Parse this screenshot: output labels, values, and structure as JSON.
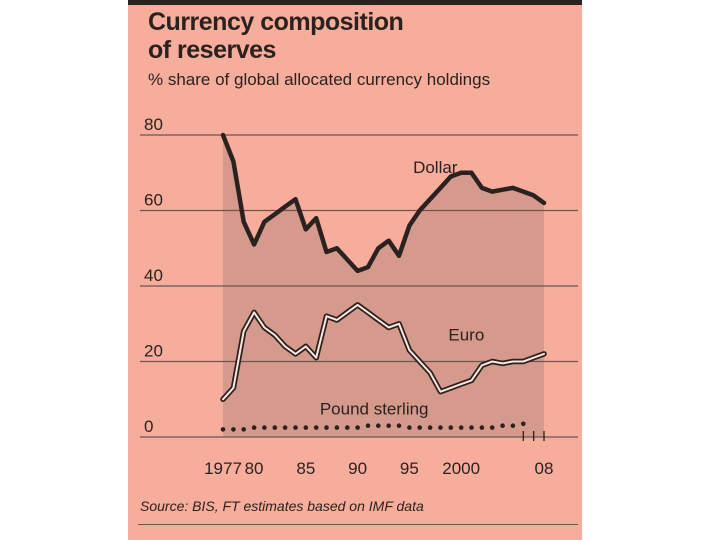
{
  "title_line1": "Currency composition",
  "title_line2": "of reserves",
  "subtitle": "% share of global allocated currency holdings",
  "source": "Source: BIS, FT estimates based on IMF data",
  "colors": {
    "paper": "#f6ad9b",
    "ink": "#2b2220",
    "shade": "#d69a8d",
    "grid": "#6b5652"
  },
  "chart_data": {
    "type": "line",
    "title": "Currency composition of reserves",
    "ylabel": "% share of global allocated currency holdings",
    "ylim": [
      0,
      80
    ],
    "y_ticks": [
      0,
      20,
      40,
      60,
      80
    ],
    "y_tick_labels": [
      "0",
      "20",
      "40",
      "60",
      "80"
    ],
    "x_ticks": [
      1977,
      1980,
      1985,
      1990,
      1995,
      2000,
      2008
    ],
    "x_tick_labels": [
      "1977",
      "80",
      "85",
      "90",
      "95",
      "2000",
      "08"
    ],
    "grid": true,
    "shaded_area": "under Dollar",
    "series": [
      {
        "name": "Dollar",
        "label": "Dollar",
        "style": "thick",
        "points": [
          [
            1977,
            80
          ],
          [
            1978,
            73
          ],
          [
            1979,
            57
          ],
          [
            1980,
            51
          ],
          [
            1981,
            57
          ],
          [
            1982,
            59
          ],
          [
            1983,
            61
          ],
          [
            1984,
            63
          ],
          [
            1985,
            55
          ],
          [
            1986,
            58
          ],
          [
            1987,
            49
          ],
          [
            1988,
            50
          ],
          [
            1989,
            47
          ],
          [
            1990,
            44
          ],
          [
            1991,
            45
          ],
          [
            1992,
            50
          ],
          [
            1993,
            52
          ],
          [
            1994,
            48
          ],
          [
            1995,
            56
          ],
          [
            1996,
            60
          ],
          [
            1997,
            63
          ],
          [
            1998,
            66
          ],
          [
            1999,
            69
          ],
          [
            2000,
            70
          ],
          [
            2001,
            70
          ],
          [
            2002,
            66
          ],
          [
            2003,
            65
          ],
          [
            2004,
            65.5
          ],
          [
            2005,
            66
          ],
          [
            2006,
            65
          ],
          [
            2007,
            64
          ],
          [
            2008,
            62
          ]
        ]
      },
      {
        "name": "Euro",
        "label": "Euro",
        "style": "double",
        "points": [
          [
            1977,
            10
          ],
          [
            1978,
            13
          ],
          [
            1979,
            28
          ],
          [
            1980,
            33
          ],
          [
            1981,
            29
          ],
          [
            1982,
            27
          ],
          [
            1983,
            24
          ],
          [
            1984,
            22
          ],
          [
            1985,
            24
          ],
          [
            1986,
            21
          ],
          [
            1987,
            32
          ],
          [
            1988,
            31
          ],
          [
            1989,
            33
          ],
          [
            1990,
            35
          ],
          [
            1991,
            33
          ],
          [
            1992,
            31
          ],
          [
            1993,
            29
          ],
          [
            1994,
            30
          ],
          [
            1995,
            23
          ],
          [
            1996,
            20
          ],
          [
            1997,
            17
          ],
          [
            1998,
            12
          ],
          [
            1999,
            13
          ],
          [
            2000,
            14
          ],
          [
            2001,
            15
          ],
          [
            2002,
            19
          ],
          [
            2003,
            20
          ],
          [
            2004,
            19.5
          ],
          [
            2005,
            20
          ],
          [
            2006,
            20
          ],
          [
            2007,
            21
          ],
          [
            2008,
            22
          ]
        ]
      },
      {
        "name": "Pound sterling",
        "label": "Pound sterling",
        "style": "dotted",
        "points": [
          [
            1977,
            2
          ],
          [
            1978,
            2
          ],
          [
            1979,
            2
          ],
          [
            1980,
            2.5
          ],
          [
            1981,
            2.5
          ],
          [
            1982,
            2.5
          ],
          [
            1983,
            2.5
          ],
          [
            1984,
            2.5
          ],
          [
            1985,
            2.5
          ],
          [
            1986,
            2.5
          ],
          [
            1987,
            2.5
          ],
          [
            1988,
            2.5
          ],
          [
            1989,
            2.5
          ],
          [
            1990,
            2.5
          ],
          [
            1991,
            3
          ],
          [
            1992,
            3
          ],
          [
            1993,
            3
          ],
          [
            1994,
            3
          ],
          [
            1995,
            2.5
          ],
          [
            1996,
            2.5
          ],
          [
            1997,
            2.5
          ],
          [
            1998,
            2.5
          ],
          [
            1999,
            2.5
          ],
          [
            2000,
            2.5
          ],
          [
            2001,
            2.5
          ],
          [
            2002,
            2.5
          ],
          [
            2003,
            2.5
          ],
          [
            2004,
            3
          ],
          [
            2005,
            3
          ],
          [
            2006,
            3.5
          ]
        ]
      }
    ]
  }
}
